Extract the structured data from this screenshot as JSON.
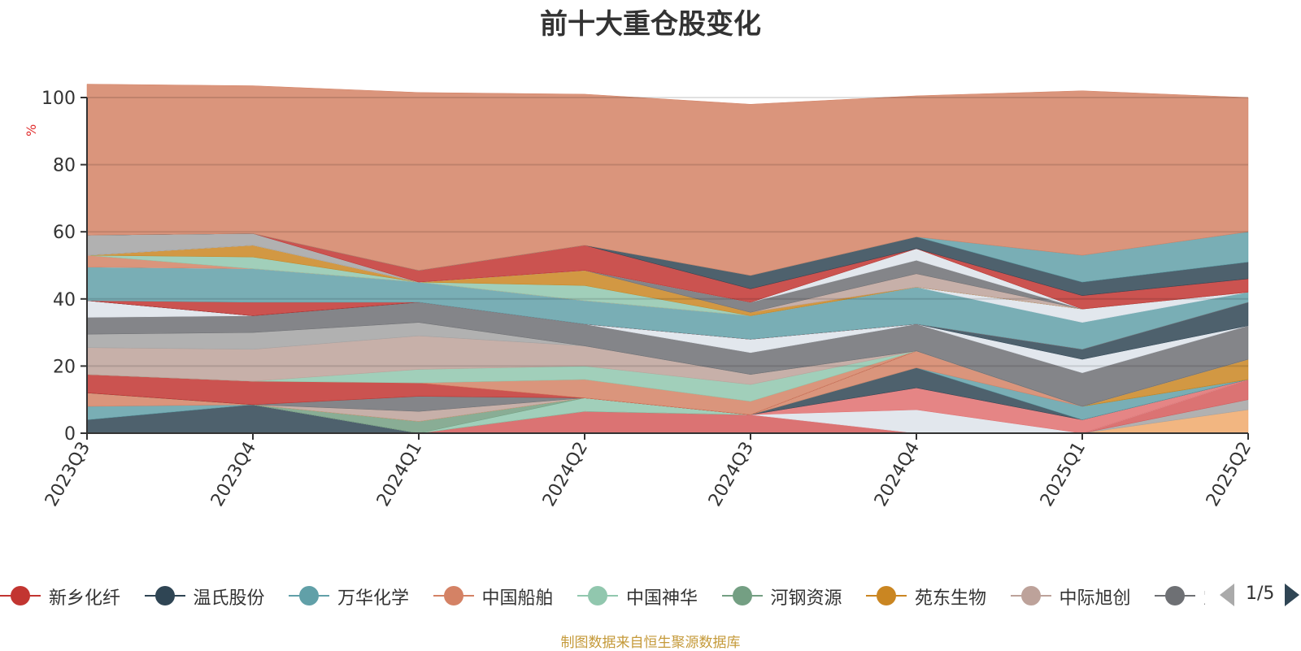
{
  "chart_data": {
    "type": "area",
    "stacked": true,
    "title": "前十大重仓股变化",
    "ylabel": "%",
    "ylim": [
      0,
      100
    ],
    "yticks": [
      0,
      20,
      40,
      60,
      80,
      100
    ],
    "categories": [
      "2023Q3",
      "2023Q4",
      "2024Q1",
      "2024Q2",
      "2024Q3",
      "2024Q4",
      "2025Q1",
      "2025Q2"
    ],
    "grid": true,
    "series": [
      {
        "name": "",
        "color": "#f0a96b",
        "values": [
          0,
          0,
          0,
          0,
          0,
          0,
          0,
          7
        ]
      },
      {
        "name": "",
        "color": "#a3a3a3",
        "values": [
          0,
          0,
          0,
          0,
          0,
          0,
          0,
          3
        ]
      },
      {
        "name": "",
        "color": "#d55a5a",
        "values": [
          0,
          0,
          0,
          6.5,
          5.5,
          0,
          0,
          6
        ]
      },
      {
        "name": "",
        "color": "#dde3ea",
        "values": [
          0,
          0,
          0,
          0,
          0,
          7,
          0,
          0
        ]
      },
      {
        "name": "",
        "color": "#e07070",
        "values": [
          0,
          0,
          0,
          0,
          0,
          6.5,
          4,
          0
        ]
      },
      {
        "name": "",
        "color": "#2f4554",
        "values": [
          4,
          8.5,
          0,
          0,
          0,
          6,
          0,
          0
        ]
      },
      {
        "name": "",
        "color": "#61a0a8",
        "values": [
          4,
          0,
          0,
          0,
          0,
          0,
          4,
          0
        ]
      },
      {
        "name": "",
        "color": "#d48265",
        "values": [
          4,
          0,
          0,
          0,
          0,
          5,
          0,
          0
        ]
      },
      {
        "name": "",
        "color": "#91c7ae",
        "values": [
          0,
          0,
          0,
          4,
          0,
          0,
          0,
          0
        ]
      },
      {
        "name": "",
        "color": "#749f83",
        "values": [
          0,
          0,
          3.5,
          0,
          0,
          0,
          0,
          0
        ]
      },
      {
        "name": "",
        "color": "#ca8622",
        "values": [
          0,
          0,
          0,
          0,
          0,
          0,
          0,
          6
        ]
      },
      {
        "name": "",
        "color": "#bda29a",
        "values": [
          0,
          0,
          3,
          0,
          0,
          0,
          0,
          0
        ]
      },
      {
        "name": "",
        "color": "#6e7074",
        "values": [
          0,
          0,
          4.5,
          0,
          0,
          0,
          0,
          0
        ]
      },
      {
        "name": "",
        "color": "#c23531",
        "values": [
          5.5,
          7,
          4,
          0,
          0,
          0,
          0,
          0
        ]
      },
      {
        "name": "",
        "color": "#d48265",
        "values": [
          0,
          0,
          0,
          5.5,
          4,
          0,
          0,
          0
        ]
      },
      {
        "name": "",
        "color": "#91c7ae",
        "values": [
          0,
          0,
          4,
          4,
          5,
          0,
          0,
          0
        ]
      },
      {
        "name": "",
        "color": "#bda29a",
        "values": [
          8,
          9.5,
          10,
          6,
          3,
          0,
          0,
          0
        ]
      },
      {
        "name": "",
        "color": "#a3a3a3",
        "values": [
          4,
          5,
          4,
          0,
          0,
          0,
          0,
          0
        ]
      },
      {
        "name": "",
        "color": "#6e7074",
        "values": [
          5,
          5,
          6,
          6.5,
          6.5,
          8,
          10,
          10
        ]
      },
      {
        "name": "",
        "color": "#dde3ea",
        "values": [
          5,
          0,
          0,
          0,
          4,
          0,
          4,
          0
        ]
      },
      {
        "name": "",
        "color": "#2f4554",
        "values": [
          0,
          0,
          0,
          0,
          0,
          0,
          3,
          7
        ]
      },
      {
        "name": "",
        "color": "#c23531",
        "values": [
          0,
          4,
          0,
          0,
          0,
          0,
          0,
          0
        ]
      },
      {
        "name": "",
        "color": "#61a0a8",
        "values": [
          10,
          10,
          6,
          7,
          7,
          11,
          8,
          3
        ]
      },
      {
        "name": "",
        "color": "#dde3ea",
        "values": [
          0,
          0,
          0,
          0,
          0,
          0,
          4,
          0
        ]
      },
      {
        "name": "",
        "color": "#d48265",
        "values": [
          3.5,
          0,
          0,
          0,
          0,
          0,
          0,
          0
        ]
      },
      {
        "name": "",
        "color": "#91c7ae",
        "values": [
          0,
          3.5,
          0,
          4.5,
          0,
          0,
          0,
          0
        ]
      },
      {
        "name": "",
        "color": "#ca8622",
        "values": [
          0,
          3.5,
          0,
          4.5,
          1,
          0,
          0,
          0
        ]
      },
      {
        "name": "",
        "color": "#bda29a",
        "values": [
          0,
          0,
          0,
          0,
          0,
          4,
          0,
          0
        ]
      },
      {
        "name": "",
        "color": "#6e7074",
        "values": [
          0,
          0,
          0,
          0,
          3,
          4,
          0,
          0
        ]
      },
      {
        "name": "",
        "color": "#dde3ea",
        "values": [
          0,
          0,
          0,
          0,
          0,
          3.5,
          0,
          0
        ]
      },
      {
        "name": "",
        "color": "#a3a3a3",
        "values": [
          6,
          3.5,
          0,
          0,
          0,
          0,
          0,
          0
        ]
      },
      {
        "name": "",
        "color": "#c23531",
        "values": [
          0,
          0,
          3.5,
          7.5,
          4,
          0,
          4,
          4
        ]
      },
      {
        "name": "",
        "color": "#2f4554",
        "values": [
          0,
          0,
          0,
          0,
          4,
          3.5,
          4,
          5
        ]
      },
      {
        "name": "",
        "color": "#61a0a8",
        "values": [
          0,
          0,
          0,
          0,
          0,
          0,
          8,
          9
        ]
      },
      {
        "name": "",
        "color": "#d48265",
        "values": [
          45,
          44,
          53,
          45,
          51,
          42,
          49,
          40
        ]
      }
    ]
  },
  "legend": {
    "items": [
      {
        "label": "新乡化纤",
        "color": "#c23531"
      },
      {
        "label": "温氏股份",
        "color": "#2f4554"
      },
      {
        "label": "万华化学",
        "color": "#61a0a8"
      },
      {
        "label": "中国船舶",
        "color": "#d48265"
      },
      {
        "label": "中国神华",
        "color": "#91c7ae"
      },
      {
        "label": "河钢资源",
        "color": "#749f83"
      },
      {
        "label": "苑东生物",
        "color": "#ca8622"
      },
      {
        "label": "中际旭创",
        "color": "#bda29a"
      },
      {
        "label": "宝",
        "color": "#6e7074"
      }
    ],
    "page_text": "1/5"
  },
  "source_note": "制图数据来自恒生聚源数据库"
}
